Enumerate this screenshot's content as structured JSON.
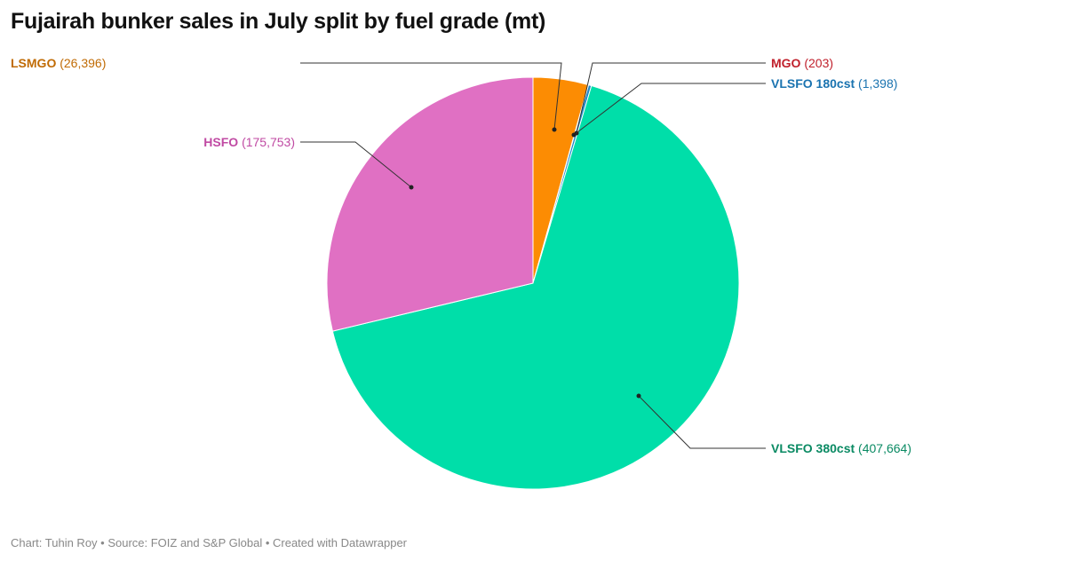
{
  "title": "Fujairah bunker sales in July split by fuel grade (mt)",
  "footer": "Chart: Tuhin Roy • Source: FOIZ and S&P Global • Created with Datawrapper",
  "chart_data": {
    "type": "pie",
    "title": "Fujairah bunker sales in July split by fuel grade (mt)",
    "unit": "mt",
    "slices": [
      {
        "label": "LSMGO",
        "value": 26396,
        "value_label": "(26,396)",
        "color": "#fc8c03",
        "label_color": "#c06b05"
      },
      {
        "label": "MGO",
        "value": 203,
        "value_label": "(203)",
        "color": "#d0202c",
        "label_color": "#c0202c"
      },
      {
        "label": "VLSFO 180cst",
        "value": 1398,
        "value_label": "(1,398)",
        "color": "#1e88c7",
        "label_color": "#1a73b0"
      },
      {
        "label": "VLSFO 380cst",
        "value": 407664,
        "value_label": "(407,664)",
        "color": "#00dea9",
        "label_color": "#0a8a63"
      },
      {
        "label": "HSFO",
        "value": 175753,
        "value_label": "(175,753)",
        "color": "#e070c3",
        "label_color": "#c04aa3"
      }
    ]
  }
}
